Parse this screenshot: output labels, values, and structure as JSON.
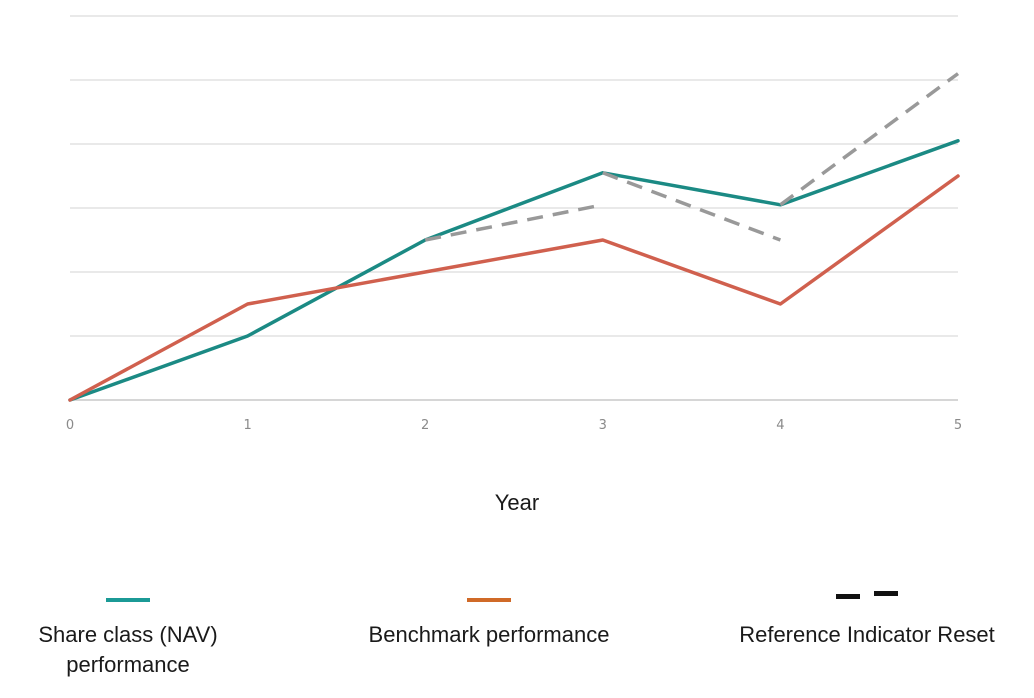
{
  "chart_data": {
    "type": "line",
    "x": [
      0,
      1,
      2,
      3,
      4,
      5
    ],
    "x_tick_labels": [
      "0",
      "1",
      "2",
      "3",
      "4",
      "5"
    ],
    "xlabel": "Year",
    "ylabel": "",
    "ylim": [
      0,
      6
    ],
    "y_gridlines": [
      1,
      2,
      3,
      4,
      5,
      6
    ],
    "grid": true,
    "legend_placement": "bottom",
    "series": [
      {
        "name": "Share class (NAV) performance",
        "color": "#1b8a84",
        "style": "solid",
        "points": [
          [
            0,
            0
          ],
          [
            1,
            1
          ],
          [
            2,
            2.5
          ],
          [
            3,
            3.55
          ],
          [
            4,
            3.05
          ],
          [
            5,
            4.05
          ]
        ]
      },
      {
        "name": "Benchmark performance",
        "color": "#d0604e",
        "style": "solid",
        "points": [
          [
            0,
            0
          ],
          [
            1,
            1.5
          ],
          [
            2,
            2.0
          ],
          [
            3,
            2.5
          ],
          [
            4,
            1.5
          ],
          [
            5,
            3.5
          ]
        ]
      },
      {
        "name": "Reference Indicator Reset",
        "color": "#999999",
        "style": "dashed",
        "segments": [
          [
            [
              2,
              2.5
            ],
            [
              3,
              3.05
            ]
          ],
          [
            [
              3,
              3.55
            ],
            [
              4,
              2.5
            ]
          ],
          [
            [
              4,
              3.05
            ],
            [
              5,
              5.1
            ]
          ]
        ]
      }
    ]
  },
  "legend": {
    "items": [
      {
        "label_line1": "Share class (NAV)",
        "label_line2": "performance",
        "color": "#1b9a96",
        "swatch": "solid"
      },
      {
        "label_line1": "Benchmark performance",
        "label_line2": "",
        "color": "#d06a28",
        "swatch": "solid"
      },
      {
        "label_line1": "Reference Indicator Reset",
        "label_line2": "",
        "color": "#111111",
        "swatch": "dashed"
      }
    ]
  }
}
